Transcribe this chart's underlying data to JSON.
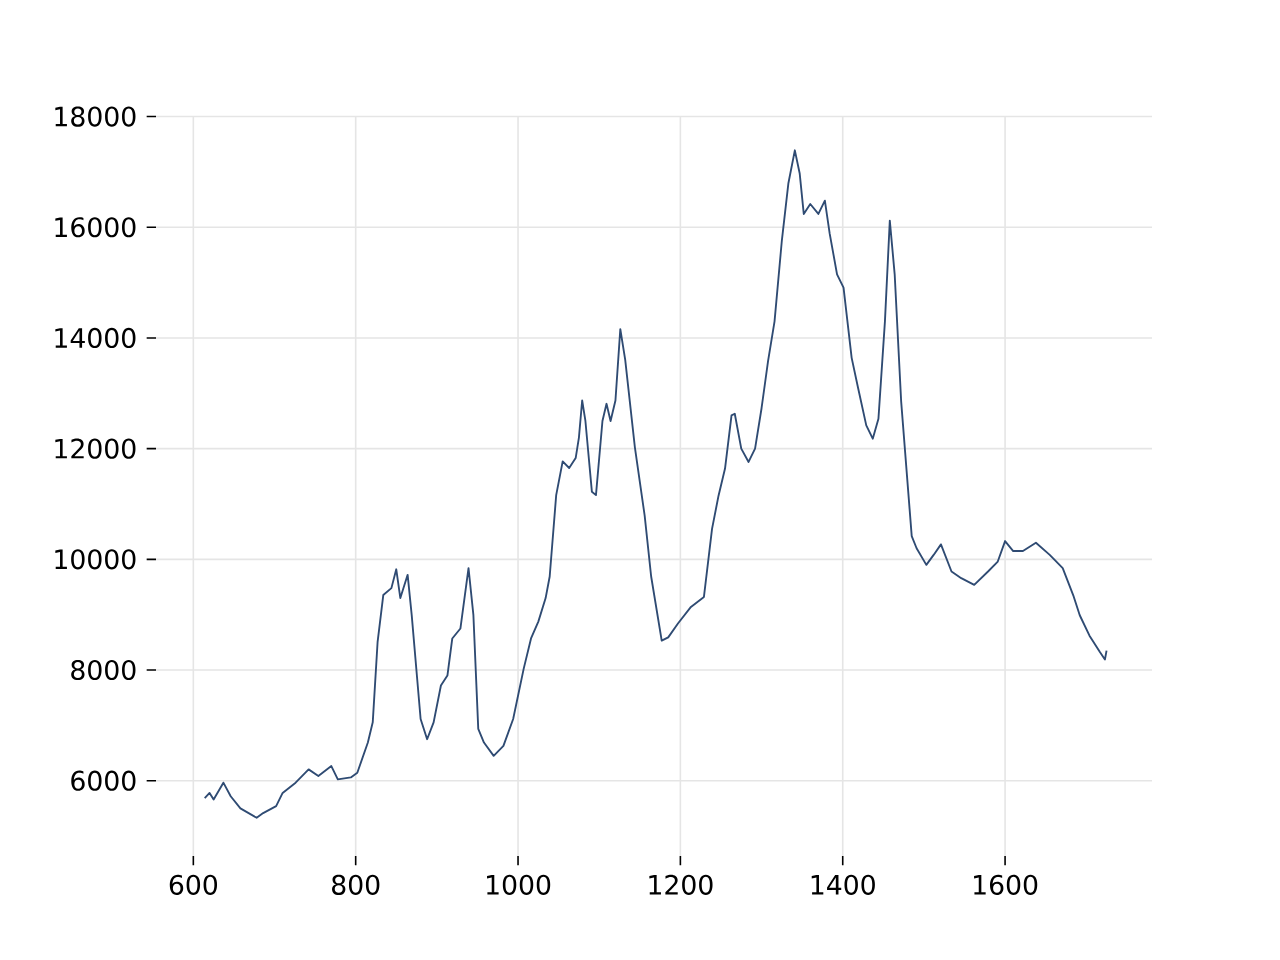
{
  "chart_data": {
    "type": "line",
    "x": [
      614,
      620,
      625,
      637,
      646,
      658,
      678,
      686,
      702,
      710,
      726,
      742,
      754,
      770,
      778,
      794,
      802,
      815,
      821,
      827,
      834,
      844,
      850,
      855,
      864,
      869,
      880,
      888,
      896,
      905,
      913,
      919,
      929,
      939,
      945,
      951,
      958,
      970,
      982,
      994,
      1007,
      1016,
      1025,
      1034,
      1039,
      1047,
      1055,
      1063,
      1071,
      1075,
      1079,
      1083,
      1091,
      1096,
      1104,
      1109,
      1114,
      1120,
      1126,
      1132,
      1144,
      1156,
      1164,
      1177,
      1185,
      1197,
      1213,
      1229,
      1239,
      1247,
      1255,
      1263,
      1267,
      1275,
      1284,
      1292,
      1300,
      1308,
      1316,
      1325,
      1333,
      1341,
      1347,
      1352,
      1360,
      1370,
      1378,
      1384,
      1393,
      1401,
      1411,
      1419,
      1429,
      1437,
      1444,
      1452,
      1458,
      1464,
      1472,
      1485,
      1491,
      1503,
      1512,
      1521,
      1534,
      1546,
      1562,
      1579,
      1591,
      1600,
      1610,
      1622,
      1638,
      1655,
      1671,
      1684,
      1692,
      1704,
      1717,
      1723,
      1725
    ],
    "series": [
      {
        "color": "#2f4b73",
        "values": [
          5685,
          5780,
          5660,
          5965,
          5720,
          5500,
          5330,
          5415,
          5540,
          5780,
          5965,
          6205,
          6085,
          6265,
          6025,
          6060,
          6145,
          6690,
          7055,
          8510,
          9355,
          9480,
          9820,
          9300,
          9720,
          8995,
          7115,
          6750,
          7055,
          7720,
          7900,
          8570,
          8750,
          9840,
          8995,
          6935,
          6690,
          6450,
          6630,
          7115,
          8025,
          8570,
          8875,
          9300,
          9690,
          11160,
          11770,
          11650,
          11830,
          12200,
          12870,
          12500,
          11220,
          11160,
          12500,
          12810,
          12500,
          12870,
          14160,
          13610,
          12020,
          10790,
          9690,
          8530,
          8590,
          8840,
          9140,
          9320,
          10550,
          11150,
          11640,
          12600,
          12630,
          12000,
          11760,
          12000,
          12730,
          13580,
          14300,
          15760,
          16790,
          17390,
          16970,
          16240,
          16420,
          16240,
          16480,
          15880,
          15150,
          14910,
          13640,
          13090,
          12420,
          12180,
          12540,
          14300,
          16120,
          15150,
          12850,
          10420,
          10200,
          9900,
          10080,
          10270,
          9780,
          9660,
          9540,
          9780,
          9960,
          10330,
          10150,
          10150,
          10300,
          10080,
          9840,
          9350,
          8990,
          8620,
          8320,
          8190,
          8350
        ]
      }
    ],
    "xlim": [
      554,
      1781
    ],
    "ylim": [
      4640,
      18010
    ],
    "xticks": [
      600,
      800,
      1000,
      1200,
      1400,
      1600
    ],
    "yticks": [
      6000,
      8000,
      10000,
      12000,
      14000,
      16000,
      18000
    ],
    "grid": true
  }
}
